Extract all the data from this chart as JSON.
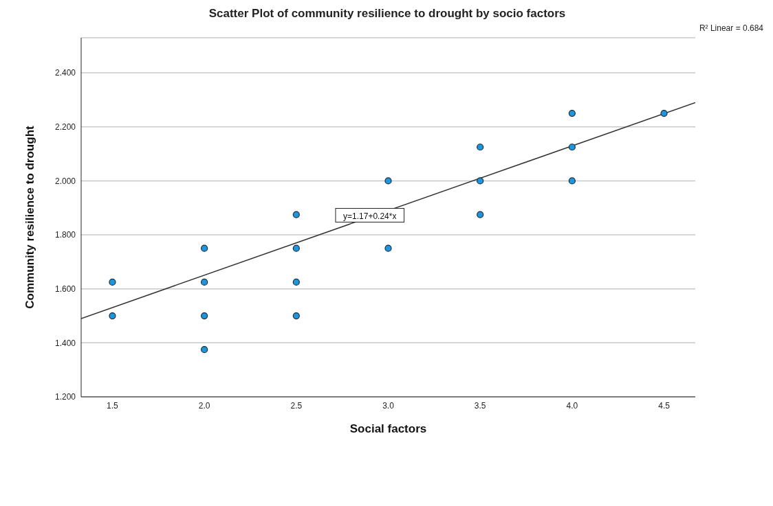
{
  "chart_data": {
    "type": "scatter",
    "title": "Scatter Plot of community resilience to drought by socio factors",
    "xlabel": "Social factors",
    "ylabel": "Community resilience to drought",
    "annotations": [
      {
        "text": "y=1.17+0.24*x",
        "x": 2.9,
        "y": 1.87
      },
      "R² Linear = 0.684"
    ],
    "xlim": [
      1.33,
      4.67
    ],
    "ylim": [
      1.2,
      2.53
    ],
    "xticks": [
      1.5,
      {
        "value": 2,
        "label": "2.0"
      },
      2.5,
      {
        "value": 3,
        "label": "3.0"
      },
      3.5,
      {
        "value": 4,
        "label": "4.0"
      },
      4.5
    ],
    "yticks": [
      {
        "value": 1.2,
        "label": "1.200"
      },
      {
        "value": 1.4,
        "label": "1.400"
      },
      {
        "value": 1.6,
        "label": "1.600"
      },
      {
        "value": 1.8,
        "label": "1.800"
      },
      {
        "value": 2,
        "label": "2.000"
      },
      {
        "value": 2.2,
        "label": "2.200"
      },
      {
        "value": 2.4,
        "label": "2.400"
      }
    ],
    "grid": "y",
    "series": [
      {
        "marker": "circle",
        "color": "#1e96dc",
        "x": [
          1.5,
          1.5,
          2,
          2,
          2,
          2,
          2.5,
          2.5,
          2.5,
          2.5,
          3,
          3,
          3.5,
          3.5,
          3.5,
          4,
          4,
          4,
          4.5
        ],
        "values": [
          1.625,
          1.5,
          1.75,
          1.625,
          1.5,
          1.375,
          1.875,
          1.75,
          1.625,
          1.5,
          2,
          1.75,
          2.125,
          2,
          1.875,
          2.25,
          2.125,
          2,
          2.25
        ]
      },
      {
        "type": "line",
        "color": "#333333",
        "line_style": "solid",
        "x": [
          1.33,
          4.67
        ],
        "values": [
          1.49,
          2.29
        ]
      }
    ]
  }
}
